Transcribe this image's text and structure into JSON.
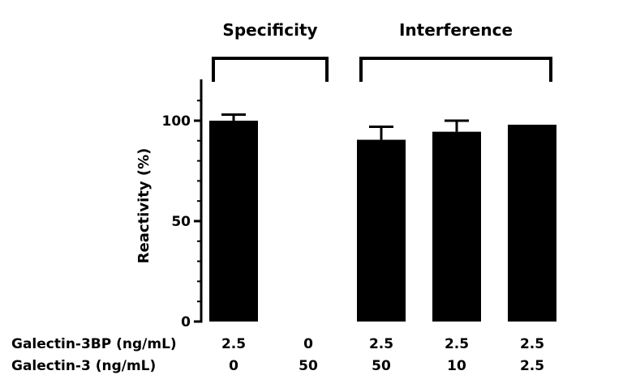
{
  "chart_data": {
    "type": "bar",
    "ylabel": "Reactivity (%)",
    "ylim": [
      0,
      120
    ],
    "yticks": [
      0,
      50,
      100
    ],
    "values": [
      100,
      0,
      90.5,
      94.5,
      98
    ],
    "errors": [
      3,
      0,
      6.5,
      5.5,
      0
    ],
    "groups": [
      {
        "label": "Specificity",
        "bars": [
          0,
          1
        ]
      },
      {
        "label": "Interference",
        "bars": [
          2,
          3,
          4
        ]
      }
    ],
    "x_table": {
      "rows": [
        {
          "label": "Galectin-3BP (ng/mL)",
          "values": [
            "2.5",
            "0",
            "2.5",
            "2.5",
            "2.5"
          ]
        },
        {
          "label": "Galectin-3 (ng/mL)",
          "values": [
            "0",
            "50",
            "50",
            "10",
            "2.5"
          ]
        }
      ]
    },
    "colors": {
      "bar": "#000000",
      "axis": "#000000"
    }
  }
}
